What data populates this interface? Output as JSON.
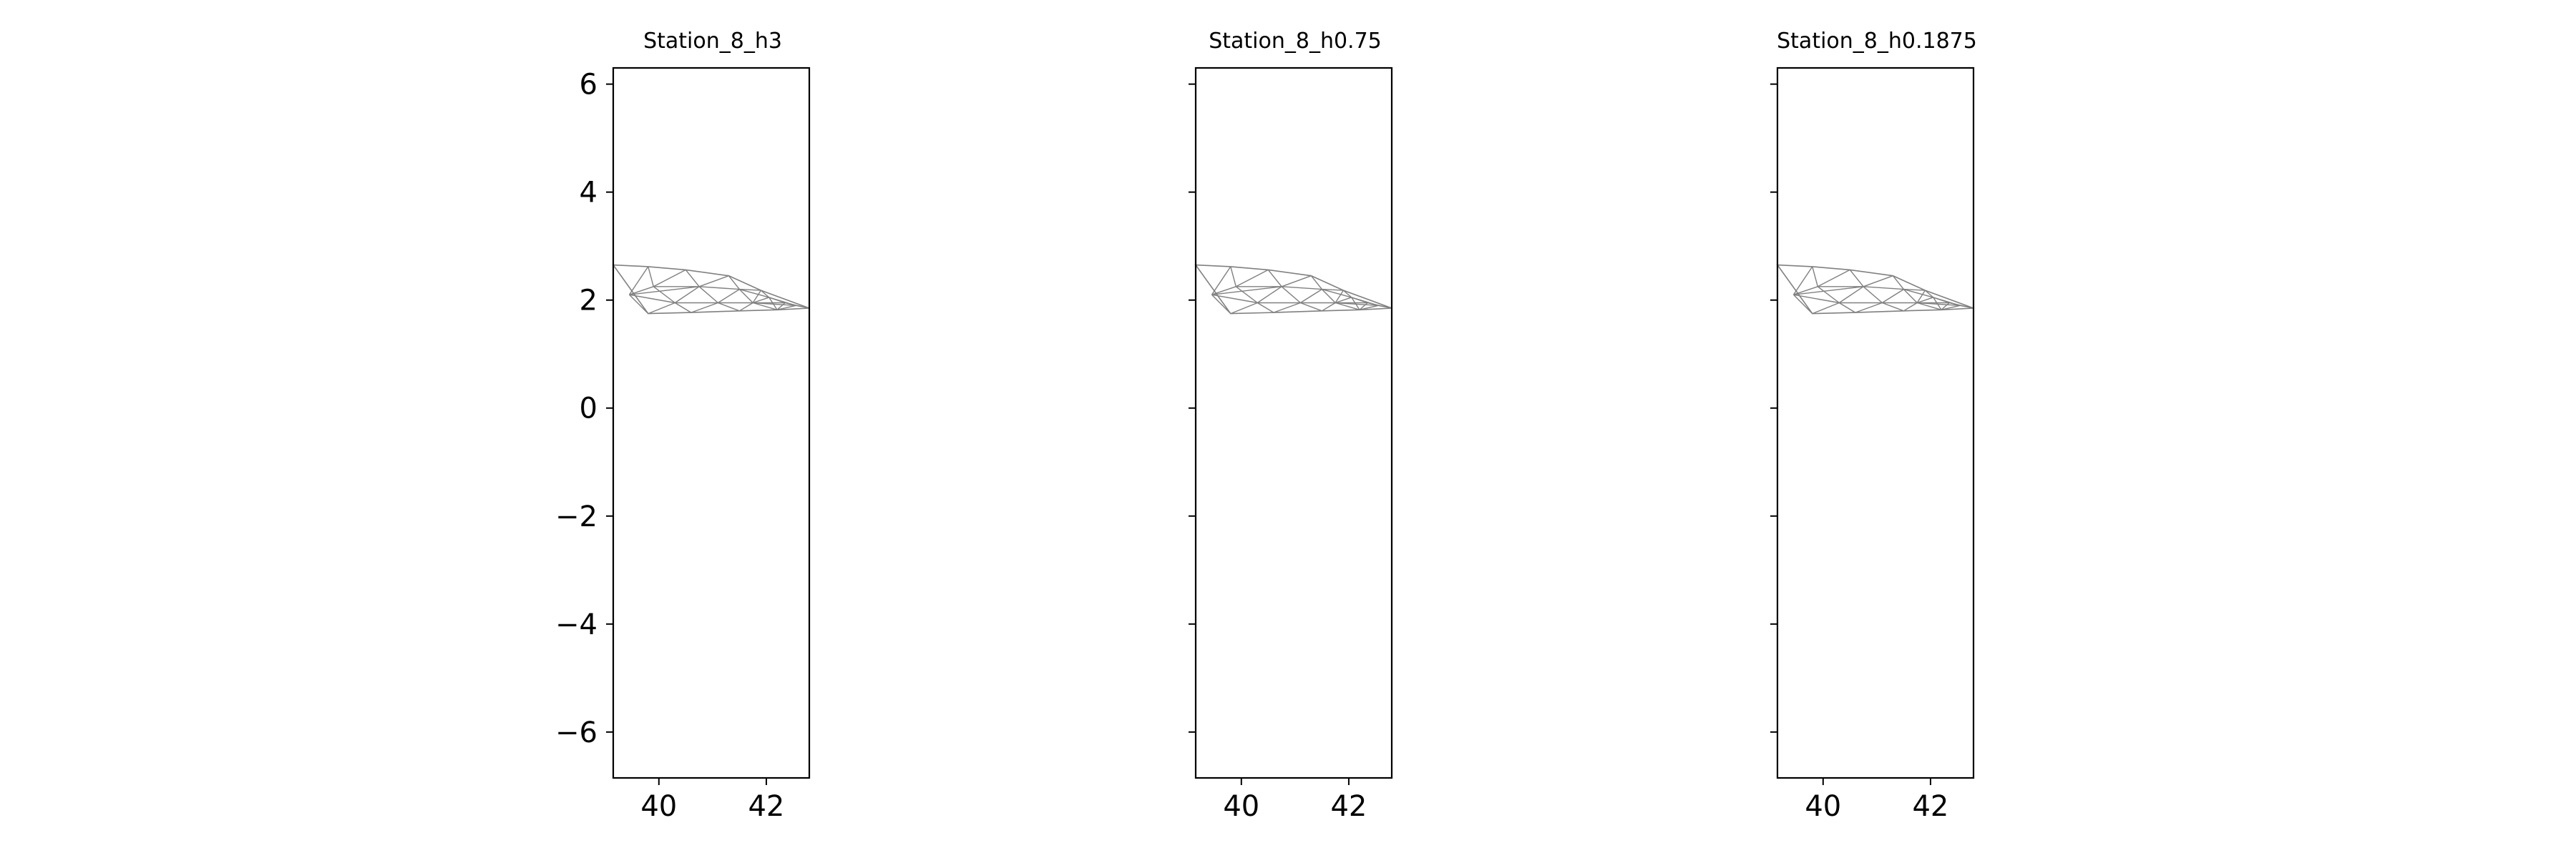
{
  "chart_data": {
    "type": "mesh",
    "panels": [
      {
        "title": "Station_8_h3"
      },
      {
        "title": "Station_8_h0.75"
      },
      {
        "title": "Station_8_h0.1875"
      }
    ],
    "sharey": true,
    "xlim": [
      39.15,
      42.8
    ],
    "ylim": [
      -6.85,
      6.3
    ],
    "xticks": [
      40,
      42
    ],
    "xtick_labels": [
      "40",
      "42"
    ],
    "yticks": [
      6,
      4,
      2,
      0,
      -2,
      -4,
      -6
    ],
    "ytick_labels": [
      "6",
      "4",
      "2",
      "0",
      "−2",
      "−4",
      "−6"
    ],
    "mesh_color": "#808080",
    "axes_color": "#000000",
    "boundary": {
      "top": [
        [
          39.15,
          2.65
        ],
        [
          39.8,
          2.62
        ],
        [
          40.5,
          2.56
        ],
        [
          41.3,
          2.45
        ],
        [
          41.9,
          2.18
        ],
        [
          42.8,
          1.85
        ]
      ],
      "bottom": [
        [
          42.8,
          1.85
        ],
        [
          42.2,
          1.82
        ],
        [
          41.5,
          1.8
        ],
        [
          40.6,
          1.77
        ],
        [
          39.8,
          1.75
        ],
        [
          39.15,
          1.75
        ]
      ]
    },
    "mesh_interior_points": [
      [
        39.45,
        2.1
      ],
      [
        39.9,
        2.25
      ],
      [
        40.3,
        1.95
      ],
      [
        40.75,
        2.25
      ],
      [
        41.1,
        1.95
      ],
      [
        41.5,
        2.2
      ],
      [
        41.75,
        1.95
      ],
      [
        42.05,
        2.05
      ],
      [
        42.35,
        1.95
      ],
      [
        42.55,
        1.9
      ]
    ]
  }
}
